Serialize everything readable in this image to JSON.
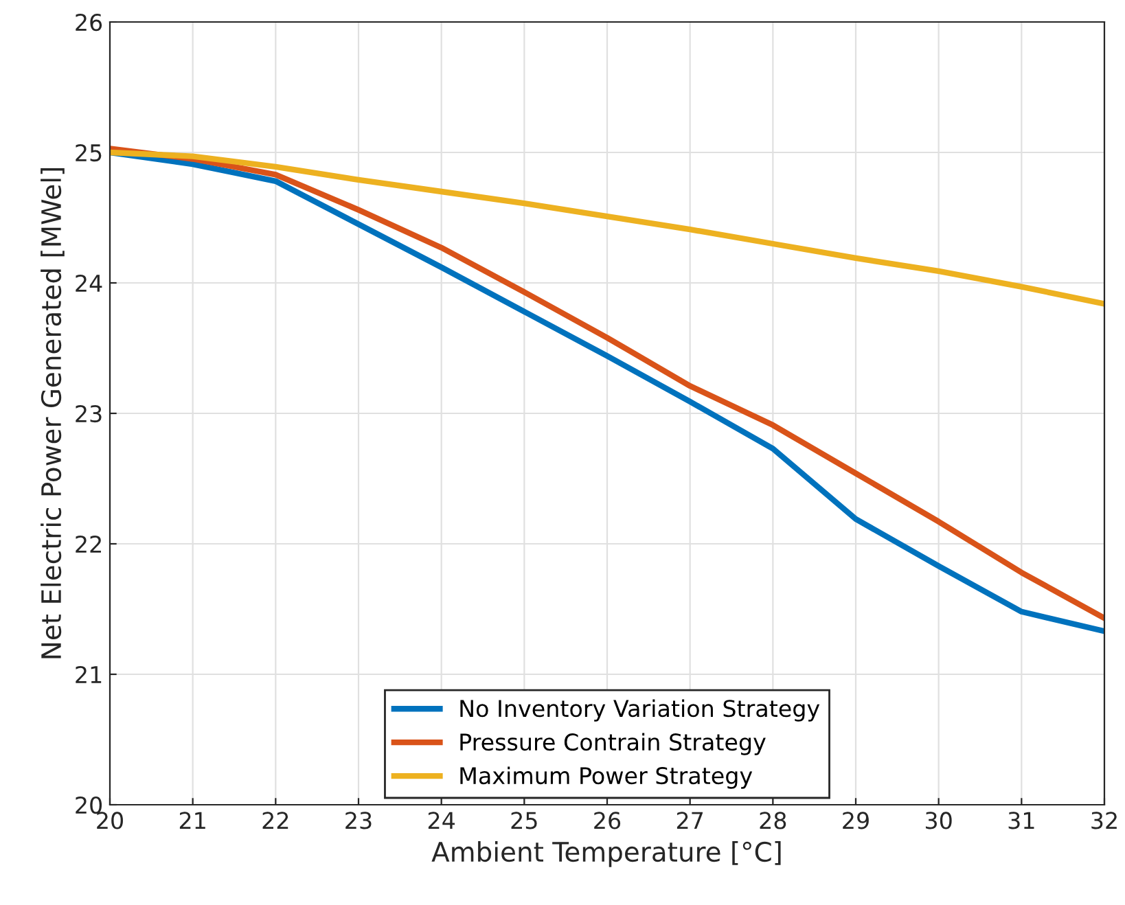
{
  "chart_data": {
    "type": "line",
    "xlabel": "Ambient Temperature [°C]",
    "ylabel": "Net Electric Power Generated [MWel]",
    "x": [
      20,
      21,
      22,
      23,
      24,
      25,
      26,
      27,
      28,
      29,
      30,
      31,
      32
    ],
    "series": [
      {
        "name": "No Inventory Variation Strategy",
        "color": "#0072bd",
        "values": [
          25.0,
          24.91,
          24.78,
          24.45,
          24.12,
          23.78,
          23.44,
          23.09,
          22.73,
          22.19,
          21.83,
          21.48,
          21.33
        ]
      },
      {
        "name": "Pressure Contrain Strategy",
        "color": "#d95319",
        "values": [
          25.03,
          24.95,
          24.83,
          24.56,
          24.27,
          23.93,
          23.58,
          23.21,
          22.91,
          22.54,
          22.17,
          21.78,
          21.43
        ]
      },
      {
        "name": "Maximum Power Strategy",
        "color": "#edb120",
        "values": [
          25.0,
          24.97,
          24.89,
          24.79,
          24.7,
          24.61,
          24.51,
          24.41,
          24.3,
          24.19,
          24.09,
          23.97,
          23.84
        ]
      }
    ],
    "xlim": [
      20,
      32
    ],
    "xticks": [
      20,
      21,
      22,
      23,
      24,
      25,
      26,
      27,
      28,
      29,
      30,
      31,
      32
    ],
    "ylim": [
      20,
      26
    ],
    "yticks": [
      20,
      21,
      22,
      23,
      24,
      25,
      26
    ],
    "grid": true,
    "legend": "bottom",
    "marker": "none",
    "line_style": "solid"
  }
}
